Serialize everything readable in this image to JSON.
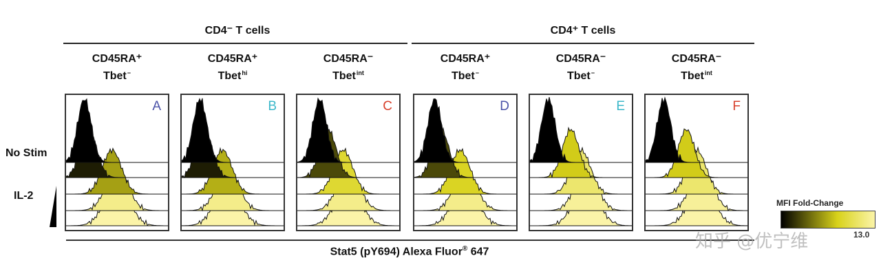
{
  "chart_data": {
    "type": "histogram-overlay",
    "groups": [
      {
        "label": "CD4⁻ T cells",
        "columns": [
          0,
          1,
          2
        ]
      },
      {
        "label": "CD4⁺ T cells",
        "columns": [
          3,
          4,
          5
        ]
      }
    ],
    "columns": [
      {
        "line1": "CD45RA⁺",
        "line2": "Tbet",
        "sup": "−",
        "letter": "A",
        "letter_color": "#4a52a8"
      },
      {
        "line1": "CD45RA⁺",
        "line2": "Tbet",
        "sup": "hi",
        "letter": "B",
        "letter_color": "#3ab7c9"
      },
      {
        "line1": "CD45RA⁻",
        "line2": "Tbet",
        "sup": "int",
        "letter": "C",
        "letter_color": "#d8402c"
      },
      {
        "line1": "CD45RA⁺",
        "line2": "Tbet",
        "sup": "−",
        "letter": "D",
        "letter_color": "#4a52a8"
      },
      {
        "line1": "CD45RA⁻",
        "line2": "Tbet",
        "sup": "−",
        "letter": "E",
        "letter_color": "#3ab7c9"
      },
      {
        "line1": "CD45RA⁻",
        "line2": "Tbet",
        "sup": "int",
        "letter": "F",
        "letter_color": "#d8402c"
      }
    ],
    "row_labels": {
      "top": "No Stim",
      "bottom": "IL-2"
    },
    "xlabel": "Stat5 (pY694) Alexa Fluor",
    "xlabel_sup": "®",
    "xlabel_suffix": " 647",
    "colorbar": {
      "title": "MFI Fold-Change",
      "max_label": "13.0",
      "min_color": "#000000",
      "mid_color": "#d8d21a",
      "max_color": "#fbf4a8"
    },
    "panels": [
      {
        "peaks": [
          0.18,
          0.22,
          0.45,
          0.5,
          0.5
        ],
        "fill": [
          1.0,
          2.0,
          6.5,
          12.0,
          13.0
        ]
      },
      {
        "peaks": [
          0.18,
          0.22,
          0.4,
          0.45,
          0.45
        ],
        "fill": [
          1.0,
          2.0,
          7.0,
          12.0,
          13.0
        ]
      },
      {
        "peaks": [
          0.22,
          0.3,
          0.45,
          0.5,
          0.5
        ],
        "fill": [
          1.0,
          3.5,
          9.0,
          12.0,
          13.0
        ]
      },
      {
        "peaks": [
          0.2,
          0.26,
          0.45,
          0.5,
          0.5
        ],
        "fill": [
          1.0,
          3.5,
          8.5,
          12.0,
          13.0
        ]
      },
      {
        "peaks": [
          0.18,
          0.4,
          0.5,
          0.55,
          0.55
        ],
        "fill": [
          1.0,
          8.0,
          11.0,
          12.5,
          13.0
        ]
      },
      {
        "peaks": [
          0.18,
          0.4,
          0.5,
          0.55,
          0.55
        ],
        "fill": [
          1.0,
          8.0,
          11.0,
          12.5,
          13.0
        ]
      }
    ]
  },
  "watermark": "知乎 @优宁维"
}
